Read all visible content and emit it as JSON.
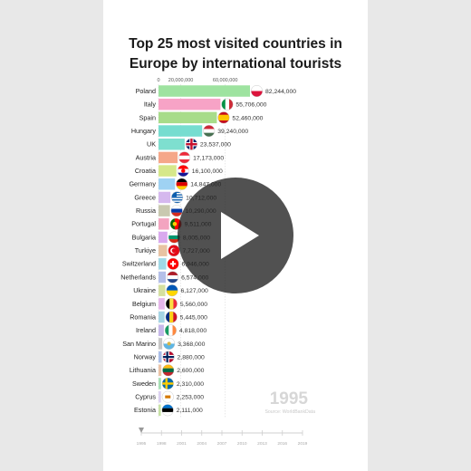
{
  "title_line1": "Top 25 most visited countries in",
  "title_line2": "Europe by international tourists",
  "year": "1995",
  "source": "Source: WorldBankData",
  "chart_data": {
    "type": "bar",
    "orientation": "horizontal",
    "title": "Top 25 most visited countries in Europe by international tourists",
    "axis_ticks": [
      0,
      20000000,
      60000000
    ],
    "axis_tick_labels": [
      "0",
      "20,000,000",
      "60,000,000"
    ],
    "xlim": [
      0,
      82244000
    ],
    "grid": true,
    "year": "1995",
    "timeline_labels": [
      "1995",
      "1998",
      "2001",
      "2004",
      "2007",
      "2010",
      "2013",
      "2016",
      "2019"
    ],
    "timeline_position": "1995",
    "categories": [
      "Poland",
      "Italy",
      "Spain",
      "Hungary",
      "UK",
      "Austria",
      "Croatia",
      "Germany",
      "Greece",
      "Russia",
      "Portugal",
      "Bulgaria",
      "Turkiye",
      "Switzerland",
      "Netherlands",
      "Ukraine",
      "Belgium",
      "Romania",
      "Ireland",
      "San Marino",
      "Norway",
      "Lithuania",
      "Sweden",
      "Cyprus",
      "Estonia"
    ],
    "values": [
      82244000,
      55706000,
      52460000,
      39240000,
      23537000,
      17173000,
      16100000,
      14847000,
      10712000,
      10290000,
      9511000,
      8005000,
      7727000,
      6946000,
      6574000,
      6127000,
      5560000,
      5445000,
      4818000,
      3368000,
      2880000,
      2600000,
      2310000,
      2253000,
      2111000
    ],
    "value_labels": [
      "82,244,000",
      "55,706,000",
      "52,460,000",
      "39,240,000",
      "23,537,000",
      "17,173,000",
      "16,100,000",
      "14,847,000",
      "10,712,000",
      "10,290,000",
      "9,511,000",
      "8,005,000",
      "7,727,000",
      "6,946,000",
      "6,574,000",
      "6,127,000",
      "5,560,000",
      "5,445,000",
      "4,818,000",
      "3,368,000",
      "2,880,000",
      "2,600,000",
      "2,310,000",
      "2,253,000",
      "2,111,000"
    ],
    "colors": [
      "#9ee3a0",
      "#f7a3c6",
      "#a8dc8a",
      "#76ddd0",
      "#7edfcf",
      "#f5a789",
      "#d6e88a",
      "#9fd2f3",
      "#d5b8ee",
      "#c9c9b0",
      "#f3a4c0",
      "#d9a9ee",
      "#e8c3a3",
      "#a0d8e6",
      "#b4bfe8",
      "#d5e0a0",
      "#e5b7ea",
      "#a5d4e4",
      "#c6b8ea",
      "#c7c7c7",
      "#a9bde8",
      "#ecc3a6",
      "#a7e0b5",
      "#dcd1f2",
      "#c8e2a6"
    ],
    "flags": [
      "poland-flag",
      "italy-flag",
      "spain-flag",
      "hungary-flag",
      "uk-flag",
      "austria-flag",
      "croatia-flag",
      "germany-flag",
      "greece-flag",
      "russia-flag",
      "portugal-flag",
      "bulgaria-flag",
      "turkiye-flag",
      "switzerland-flag",
      "netherlands-flag",
      "ukraine-flag",
      "belgium-flag",
      "romania-flag",
      "ireland-flag",
      "san-marino-flag",
      "norway-flag",
      "lithuania-flag",
      "sweden-flag",
      "cyprus-flag",
      "estonia-flag"
    ]
  }
}
